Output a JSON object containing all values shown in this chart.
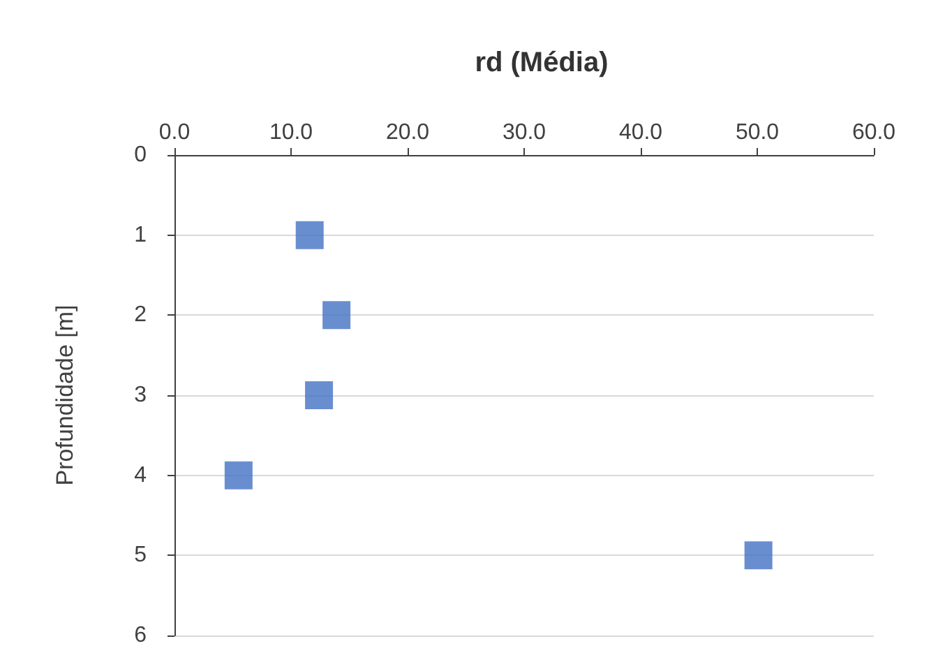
{
  "chart_data": {
    "type": "scatter",
    "title": "rd (Média)",
    "ylabel": "Profundidade [m]",
    "x": [
      11.6,
      13.9,
      12.4,
      5.5,
      50.1
    ],
    "values": [
      1,
      2,
      3,
      4,
      5
    ],
    "color": "#4472c4",
    "marker": "square",
    "xlim": [
      0,
      60
    ],
    "xticks": [
      {
        "value": 0,
        "label": "0.0"
      },
      {
        "value": 10,
        "label": "10.0"
      },
      {
        "value": 20,
        "label": "20.0"
      },
      {
        "value": 30,
        "label": "30.0"
      },
      {
        "value": 40,
        "label": "40.0"
      },
      {
        "value": 50,
        "label": "50.0"
      },
      {
        "value": 60,
        "label": "60.0"
      }
    ],
    "ylim": [
      6,
      0
    ],
    "yticks": [
      0,
      1,
      2,
      3,
      4,
      5,
      6
    ],
    "grid": "y"
  }
}
